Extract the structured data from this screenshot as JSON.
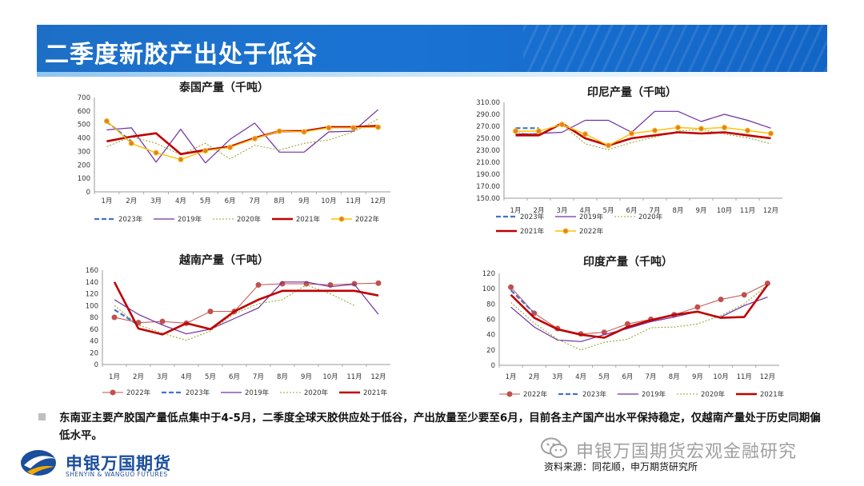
{
  "page_title": "二季度新胶产出处于低谷",
  "summary": "东南亚主要产胶国产量低点集中于4-5月，二季度全球天胶供应处于低谷，产出放量至少要至6月，目前各主产国产出水平保持稳定，仅越南产量处于历史同期偏低水平。",
  "source": "资料来源：同花顺，申万期货研究所",
  "watermark": "申银万国期货宏观金融研究",
  "logo": {
    "cn": "申银万国期货",
    "en": "SHENYIN & WANGUO FUTURES"
  },
  "icons": {
    "bullet": "square-bullet-icon",
    "logo": "swhy-logo-icon",
    "watermark": "wechat-icon"
  },
  "colors": {
    "header": "#1a73d3",
    "s2023": "#4472c4",
    "s2019": "#7030a0",
    "s2020": "#9aa832",
    "s2021": "#c00000",
    "s2022_line": "#ffc000",
    "s2022_marker": "#e07b39",
    "s2022_vn_in": "#c0504d"
  },
  "chart_data": [
    {
      "type": "line",
      "title": "泰国产量（千吨）",
      "categories": [
        "1月",
        "2月",
        "3月",
        "4月",
        "5月",
        "6月",
        "7月",
        "8月",
        "9月",
        "10月",
        "11月",
        "12月"
      ],
      "yticks": [
        "0",
        "100",
        "200",
        "300",
        "400",
        "500",
        "600",
        "700"
      ],
      "ylim": [
        0,
        700
      ],
      "legend": [
        "2023年",
        "2019年",
        "2020年",
        "2021年",
        "2022年"
      ],
      "series": [
        {
          "name": "2023年",
          "values": [
            520,
            375,
            null,
            null,
            null,
            null,
            null,
            null,
            null,
            null,
            null,
            null
          ]
        },
        {
          "name": "2019年",
          "values": [
            460,
            475,
            220,
            465,
            215,
            390,
            510,
            295,
            295,
            445,
            450,
            610
          ]
        },
        {
          "name": "2020年",
          "values": [
            335,
            410,
            360,
            275,
            360,
            245,
            345,
            310,
            360,
            385,
            445,
            540
          ]
        },
        {
          "name": "2021年",
          "values": [
            375,
            410,
            435,
            280,
            310,
            335,
            400,
            450,
            450,
            480,
            480,
            490
          ]
        },
        {
          "name": "2022年",
          "values": [
            525,
            360,
            290,
            240,
            305,
            330,
            395,
            450,
            445,
            475,
            475,
            480
          ]
        }
      ]
    },
    {
      "type": "line",
      "title": "印尼产量（千吨）",
      "categories": [
        "1月",
        "2月",
        "3月",
        "4月",
        "5月",
        "6月",
        "7月",
        "8月",
        "9月",
        "10月",
        "11月",
        "12月"
      ],
      "yticks": [
        "150.00",
        "170.00",
        "190.00",
        "210.00",
        "230.00",
        "250.00",
        "270.00",
        "290.00",
        "310.00"
      ],
      "ylim": [
        150,
        310
      ],
      "legend": [
        "2023年",
        "2019年",
        "2020年",
        "2021年",
        "2022年"
      ],
      "series": [
        {
          "name": "2023年",
          "values": [
            267,
            267,
            null,
            null,
            null,
            null,
            null,
            null,
            null,
            null,
            null,
            null
          ]
        },
        {
          "name": "2019年",
          "values": [
            257,
            258,
            260,
            280,
            280,
            260,
            295,
            295,
            278,
            290,
            280,
            267
          ]
        },
        {
          "name": "2020年",
          "values": [
            260,
            256,
            273,
            241,
            231,
            243,
            252,
            262,
            265,
            257,
            251,
            241
          ]
        },
        {
          "name": "2021年",
          "values": [
            255,
            255,
            275,
            250,
            238,
            250,
            255,
            260,
            258,
            260,
            255,
            250
          ]
        },
        {
          "name": "2022年",
          "values": [
            262,
            262,
            273,
            257,
            238,
            258,
            263,
            268,
            266,
            268,
            263,
            258
          ]
        }
      ]
    },
    {
      "type": "line",
      "title": "越南产量（千吨）",
      "categories": [
        "1月",
        "2月",
        "3月",
        "4月",
        "5月",
        "6月",
        "7月",
        "8月",
        "9月",
        "10月",
        "11月",
        "12月"
      ],
      "yticks": [
        "0",
        "20",
        "40",
        "60",
        "80",
        "100",
        "120",
        "140",
        "160"
      ],
      "ylim": [
        0,
        160
      ],
      "legend": [
        "2022年",
        "2023年",
        "2019年",
        "2020年",
        "2021年"
      ],
      "series": [
        {
          "name": "2022年",
          "values": [
            80,
            71,
            73,
            70,
            90,
            90,
            135,
            137,
            137,
            135,
            137,
            138
          ]
        },
        {
          "name": "2023年",
          "values": [
            93,
            67,
            null,
            null,
            null,
            null,
            null,
            null,
            null,
            null,
            null,
            null
          ]
        },
        {
          "name": "2019年",
          "values": [
            110,
            85,
            67,
            52,
            60,
            78,
            96,
            140,
            140,
            132,
            136,
            85
          ]
        },
        {
          "name": "2020年",
          "values": [
            100,
            67,
            53,
            41,
            57,
            86,
            103,
            110,
            135,
            120,
            100,
            null
          ]
        },
        {
          "name": "2021年",
          "values": [
            140,
            61,
            51,
            70,
            60,
            90,
            110,
            125,
            125,
            125,
            125,
            117
          ]
        }
      ]
    },
    {
      "type": "line",
      "title": "印度产量（千吨）",
      "categories": [
        "1月",
        "2月",
        "3月",
        "4月",
        "5月",
        "6月",
        "7月",
        "8月",
        "9月",
        "10月",
        "11月",
        "12月"
      ],
      "yticks": [
        "0",
        "20",
        "40",
        "60",
        "80",
        "100",
        "120"
      ],
      "ylim": [
        0,
        120
      ],
      "legend": [
        "2022年",
        "2023年",
        "2019年",
        "2020年",
        "2021年"
      ],
      "series": [
        {
          "name": "2022年",
          "values": [
            102,
            68,
            48,
            41,
            43,
            54,
            60,
            66,
            76,
            86,
            92,
            107
          ]
        },
        {
          "name": "2023年",
          "values": [
            98,
            68,
            null,
            null,
            null,
            null,
            null,
            null,
            null,
            null,
            null,
            null
          ]
        },
        {
          "name": "2019年",
          "values": [
            76,
            50,
            33,
            31,
            40,
            48,
            57,
            63,
            70,
            63,
            78,
            89
          ]
        },
        {
          "name": "2020年",
          "values": [
            82,
            55,
            34,
            20,
            30,
            34,
            49,
            50,
            54,
            65,
            80,
            105
          ]
        },
        {
          "name": "2021年",
          "values": [
            92,
            62,
            47,
            40,
            36,
            50,
            59,
            66,
            70,
            62,
            63,
            105
          ]
        }
      ]
    }
  ]
}
